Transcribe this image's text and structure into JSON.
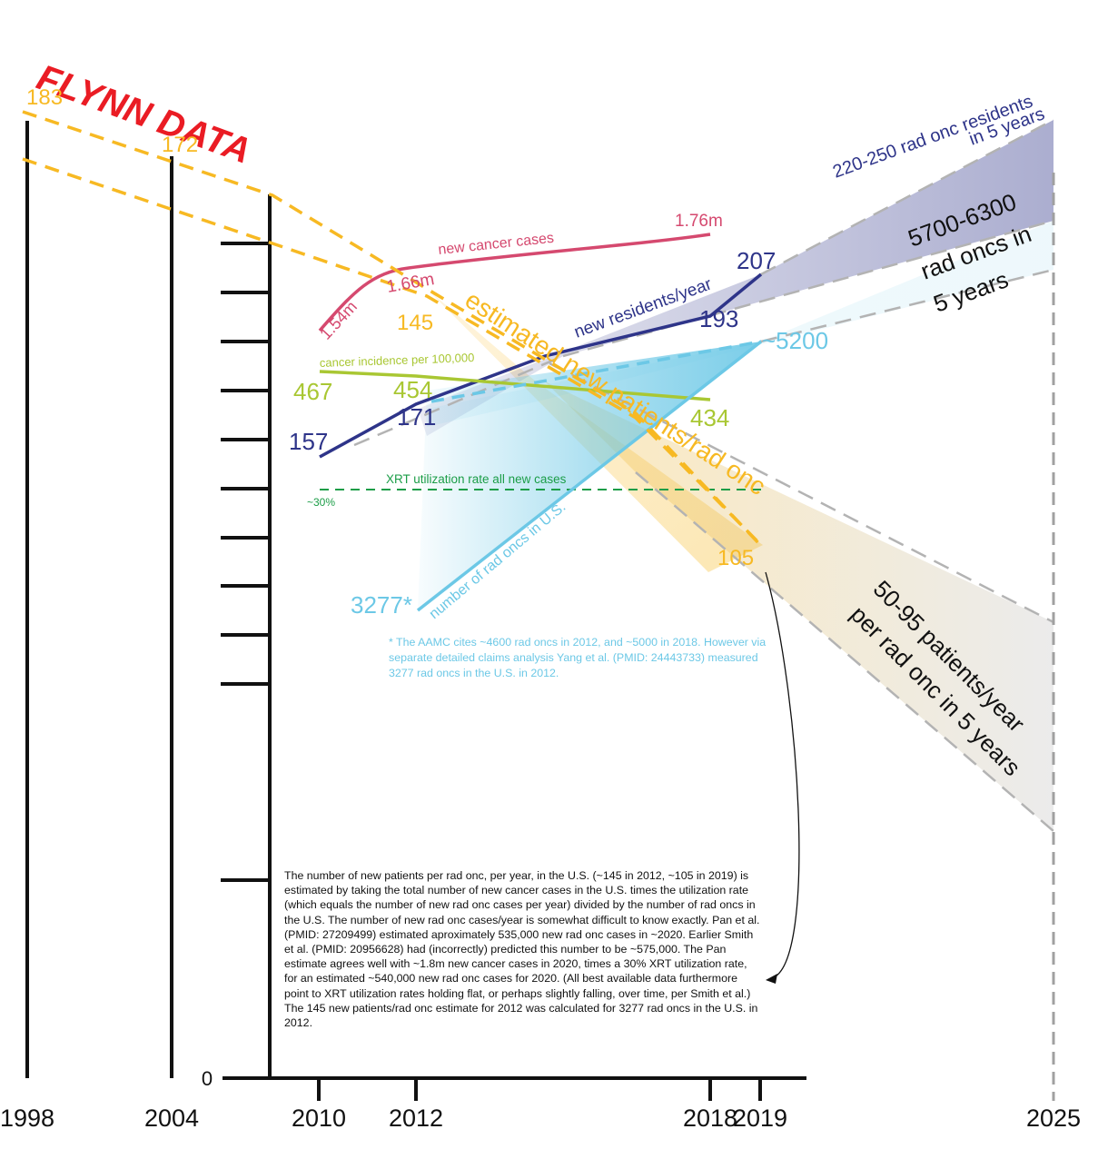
{
  "colors": {
    "flynn": "#ea1c24",
    "orange": "#f7b923",
    "pink": "#d5496f",
    "navy": "#2e3489",
    "lime": "#a9c733",
    "green": "#1b9d47",
    "cyan": "#6cc8e6",
    "axis": "#111111",
    "dash_gray": "#b3b3b3"
  },
  "chart_data": {
    "type": "line",
    "title": "FLYNN DATA",
    "x_ticks": [
      "1998",
      "2004",
      "2010",
      "2012",
      "2018",
      "2019",
      "2025"
    ],
    "y_zero_label": "0",
    "series": [
      {
        "name": "new cancer cases",
        "x": [
          2010,
          2011,
          2012,
          2018
        ],
        "labels": [
          "1.54m",
          "1.66m",
          "1.76m"
        ]
      },
      {
        "name": "new residents/year",
        "x": [
          2010,
          2012,
          2018,
          2019
        ],
        "values": [
          157,
          171,
          193,
          207
        ]
      },
      {
        "name": "cancer incidence per 100,000",
        "x": [
          2010,
          2012,
          2018
        ],
        "values": [
          467,
          454,
          434
        ]
      },
      {
        "name": "XRT utilization rate all new cases",
        "x": [
          2010,
          2019
        ],
        "values_label": "~30%"
      },
      {
        "name": "number of rad oncs in U.S.",
        "x": [
          2012,
          2019
        ],
        "values": [
          "3277*",
          "~5200"
        ]
      },
      {
        "name": "estimated new patients/rad onc",
        "x": [
          1998,
          2004,
          2012,
          2019
        ],
        "values": [
          183,
          172,
          145,
          105
        ]
      }
    ],
    "projections": [
      {
        "label_lines": [
          "220-250 rad onc residents",
          "in 5 years"
        ],
        "series": "new residents/year"
      },
      {
        "label_lines": [
          "5700-6300",
          "rad oncs in",
          "5 years"
        ],
        "series": "number of rad oncs in U.S."
      },
      {
        "label_lines": [
          "50-95 patients/year",
          "per rad onc in 5 years"
        ],
        "series": "estimated new patients/rad onc"
      }
    ]
  },
  "notes": {
    "aamc": "* The AAMC cites ~4600 rad oncs in 2012, and ~5000 in 2018. However via separate detailed claims analysis Yang et al. (PMID: 24443733) measured 3277 rad oncs in the U.S. in 2012.",
    "xrt": "The number of new patients per rad onc, per year, in the U.S. (~145 in 2012, ~105 in 2019) is estimated by taking the total number of new cancer cases in the U.S. times the utilization rate (which equals the number of new rad onc cases per year) divided by the number of rad oncs in the U.S. The number of new rad onc cases/year is somewhat difficult to know exactly. Pan et al. (PMID: 27209499) estimated aproximately 535,000 new rad onc cases in ~2020. Earlier Smith et al. (PMID: 20956628) had (incorrectly) predicted this number to be ~575,000. The Pan estimate agrees well with ~1.8m new cancer cases in 2020, times a 30% XRT utilization rate, for an estimated ~540,000 new rad onc cases for 2020. (All best available data furthermore point to XRT utilization rates holding flat, or perhaps slightly falling, over time, per Smith et al.) The 145 new patients/rad onc estimate for 2012 was calculated for 3277 rad oncs in the U.S. in 2012."
  }
}
